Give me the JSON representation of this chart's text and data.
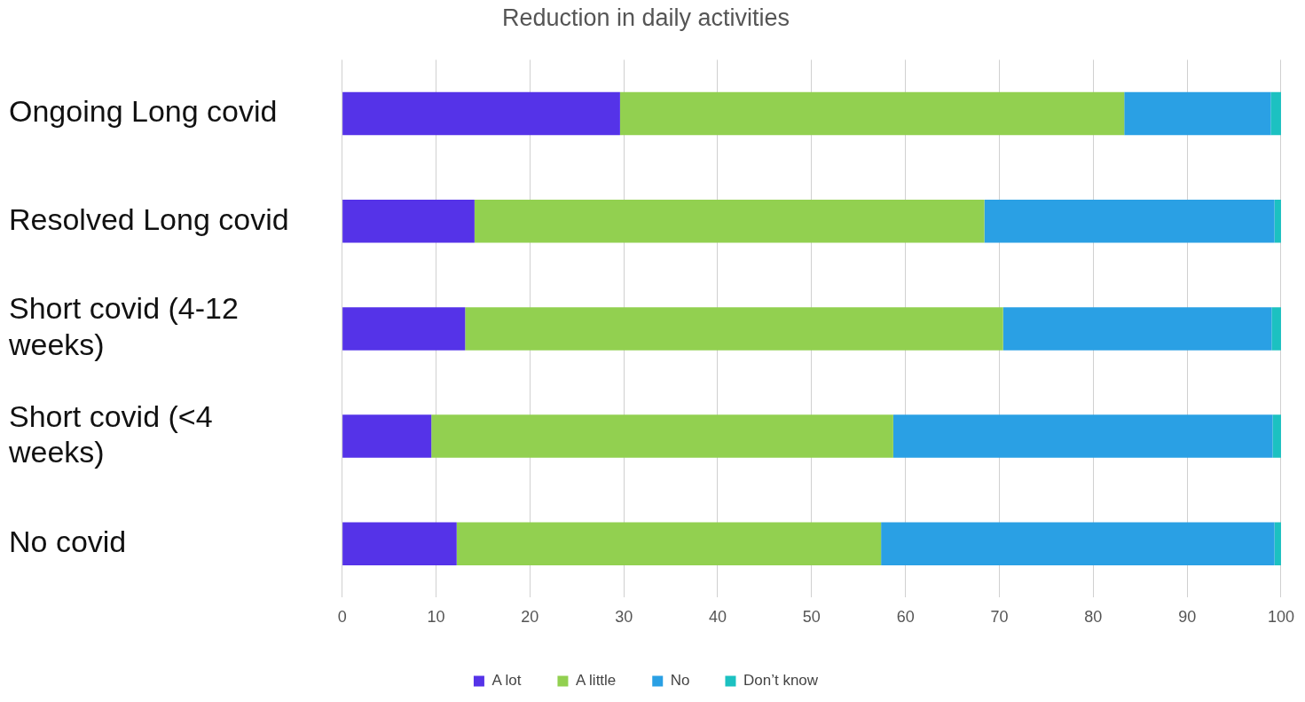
{
  "chart_data": {
    "type": "bar",
    "orientation": "horizontal",
    "stacked": true,
    "title": "Reduction in daily activities",
    "categories": [
      "Ongoing Long covid",
      "Resolved Long covid",
      "Short covid (4-12 weeks)",
      "Short covid (<4 weeks)",
      "No covid"
    ],
    "series": [
      {
        "name": "A lot",
        "color": "#5533e8",
        "values": [
          29.6,
          14.1,
          13.1,
          9.5,
          12.2
        ]
      },
      {
        "name": "A little",
        "color": "#92d050",
        "values": [
          53.7,
          54.3,
          57.3,
          49.2,
          45.2
        ]
      },
      {
        "name": "No",
        "color": "#2aa0e4",
        "values": [
          15.6,
          30.9,
          28.6,
          40.4,
          41.9
        ]
      },
      {
        "name": "Don’t know",
        "color": "#1cc1c1",
        "values": [
          1.1,
          0.7,
          1.0,
          0.9,
          0.7
        ]
      }
    ],
    "xlim": [
      0,
      100
    ],
    "xticks": [
      0,
      10,
      20,
      30,
      40,
      50,
      60,
      70,
      80,
      90,
      100
    ],
    "grid": "x",
    "legend": "bottom"
  }
}
